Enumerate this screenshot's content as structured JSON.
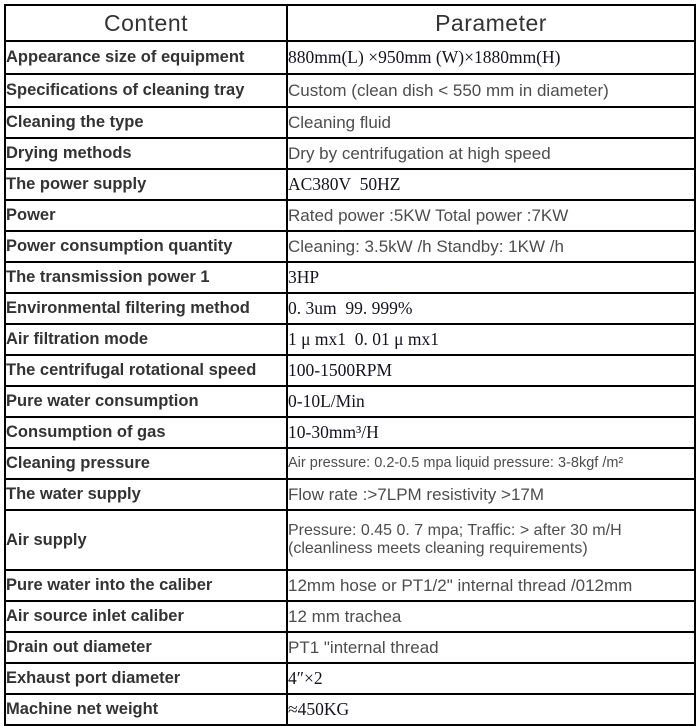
{
  "header": {
    "content": "Content",
    "parameter": "Parameter"
  },
  "rows": [
    {
      "label": "Appearance size of equipment",
      "value": "880mm(L) ×950mm (W)×1880mm(H)",
      "font": "serif"
    },
    {
      "label": "Specifications of cleaning tray",
      "value": "Custom (clean dish < 550 mm in diameter)",
      "font": "sans"
    },
    {
      "label": "Cleaning the type",
      "value": "Cleaning fluid",
      "font": "sans"
    },
    {
      "label": "Drying methods",
      "value": "Dry by centrifugation at high speed",
      "font": "sans"
    },
    {
      "label": "The power supply",
      "value": "AC380V  50HZ",
      "font": "serif"
    },
    {
      "label": "Power",
      "value": "Rated power :5KW Total power :7KW",
      "font": "sans"
    },
    {
      "label": "Power consumption quantity",
      "value": "Cleaning: 3.5kW /h Standby: 1KW /h",
      "font": "sans"
    },
    {
      "label": "The transmission power 1",
      "value": "3HP",
      "font": "serif"
    },
    {
      "label": "Environmental filtering method",
      "value": "0. 3um  99. 999%",
      "font": "serif"
    },
    {
      "label": "Air filtration mode",
      "value": "1 μ mx1  0. 01 μ mx1",
      "font": "serif"
    },
    {
      "label": "The centrifugal rotational speed",
      "value": "100-1500RPM",
      "font": "serif"
    },
    {
      "label": "Pure water consumption",
      "value": "0-10L/Min",
      "font": "serif"
    },
    {
      "label": "Consumption of gas",
      "value": "10-30mm³/H",
      "font": "serif"
    },
    {
      "label": "Cleaning pressure",
      "value": "Air pressure: 0.2-0.5 mpa liquid pressure: 3-8kgf /m²",
      "font": "sans",
      "small": true
    },
    {
      "label": "The water supply",
      "value": "Flow rate :>7LPM resistivity >17M",
      "font": "sans"
    },
    {
      "label": "Air supply",
      "value": "Pressure: 0.45 0. 7 mpa; Traffic: > after 30 m/H\n(cleanliness meets cleaning requirements)",
      "font": "sans",
      "tall": true
    },
    {
      "label": "Pure water into the caliber",
      "value": "12mm hose or PT1/2\" internal thread /012mm",
      "font": "sans"
    },
    {
      "label": "Air source inlet caliber",
      "value": "12 mm trachea",
      "font": "sans"
    },
    {
      "label": "Drain out diameter",
      "value": "PT1 \"internal thread",
      "font": "sans"
    },
    {
      "label": "Exhaust port diameter",
      "value": "4″×2",
      "font": "serif"
    },
    {
      "label": "Machine net weight",
      "value": "≈450KG",
      "font": "serif"
    }
  ],
  "colors": {
    "border": "#000000",
    "label_text": "#333333",
    "value_sans_text": "#4d4d4d",
    "value_serif_text": "#14141f",
    "background": "#ffffff"
  }
}
